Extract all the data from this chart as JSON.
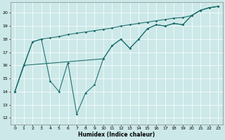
{
  "xlabel": "Humidex (Indice chaleur)",
  "background_color": "#cce8e8",
  "line_color": "#1a6b6b",
  "xlim": [
    -0.5,
    23.5
  ],
  "ylim": [
    11.5,
    20.8
  ],
  "yticks": [
    12,
    13,
    14,
    15,
    16,
    17,
    18,
    19,
    20
  ],
  "xticks": [
    0,
    1,
    2,
    3,
    4,
    5,
    6,
    7,
    8,
    9,
    10,
    11,
    12,
    13,
    14,
    15,
    16,
    17,
    18,
    19,
    20,
    21,
    22,
    23
  ],
  "series1": [
    [
      0,
      14.0
    ],
    [
      1,
      16.0
    ],
    [
      2,
      17.8
    ],
    [
      3,
      18.0
    ],
    [
      4,
      14.8
    ],
    [
      5,
      14.0
    ],
    [
      6,
      16.2
    ],
    [
      7,
      12.3
    ],
    [
      8,
      13.9
    ],
    [
      9,
      14.5
    ],
    [
      10,
      16.5
    ],
    [
      11,
      17.5
    ],
    [
      12,
      18.0
    ],
    [
      13,
      17.3
    ],
    [
      14,
      18.0
    ],
    [
      15,
      18.8
    ],
    [
      16,
      19.1
    ],
    [
      17,
      19.0
    ],
    [
      18,
      19.2
    ],
    [
      19,
      19.1
    ],
    [
      20,
      19.8
    ],
    [
      21,
      20.2
    ],
    [
      22,
      20.4
    ],
    [
      23,
      20.5
    ]
  ],
  "series2": [
    [
      0,
      14.0
    ],
    [
      2,
      17.8
    ],
    [
      3,
      18.0
    ],
    [
      4,
      18.1
    ],
    [
      5,
      18.2
    ],
    [
      6,
      18.35
    ],
    [
      7,
      18.45
    ],
    [
      8,
      18.55
    ],
    [
      9,
      18.65
    ],
    [
      10,
      18.75
    ],
    [
      11,
      18.85
    ],
    [
      12,
      19.0
    ],
    [
      13,
      19.1
    ],
    [
      14,
      19.2
    ],
    [
      15,
      19.3
    ],
    [
      16,
      19.4
    ],
    [
      17,
      19.5
    ],
    [
      18,
      19.6
    ],
    [
      19,
      19.65
    ],
    [
      20,
      19.8
    ],
    [
      21,
      20.2
    ],
    [
      22,
      20.4
    ],
    [
      23,
      20.5
    ]
  ],
  "series3": [
    [
      0,
      14.0
    ],
    [
      1,
      16.0
    ],
    [
      10,
      16.5
    ],
    [
      11,
      17.5
    ],
    [
      12,
      18.0
    ],
    [
      13,
      17.3
    ],
    [
      14,
      18.0
    ],
    [
      15,
      18.8
    ],
    [
      16,
      19.1
    ],
    [
      17,
      19.0
    ],
    [
      18,
      19.2
    ],
    [
      19,
      19.1
    ],
    [
      20,
      19.8
    ],
    [
      21,
      20.2
    ],
    [
      22,
      20.4
    ],
    [
      23,
      20.5
    ]
  ]
}
